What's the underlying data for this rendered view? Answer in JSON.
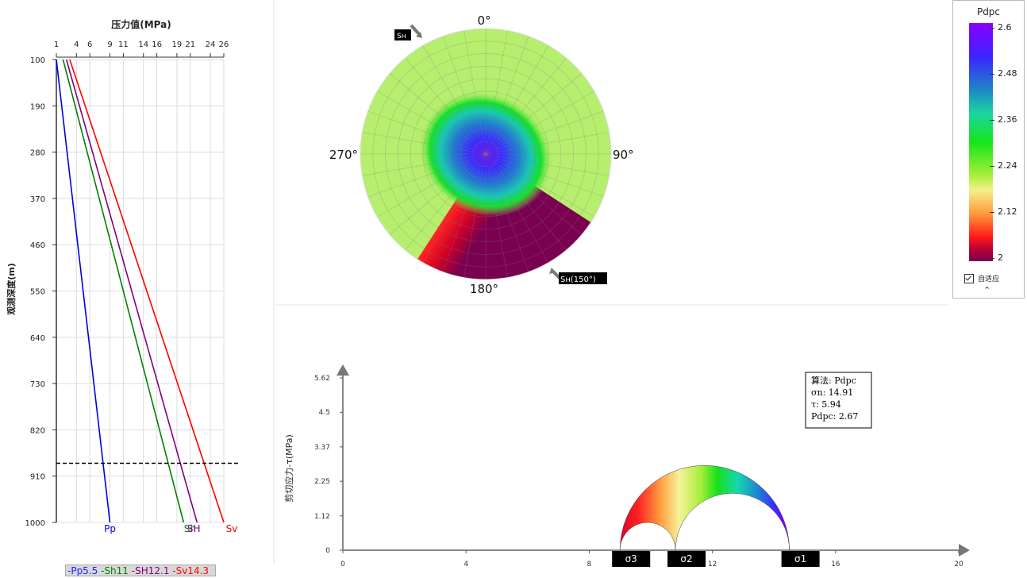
{
  "chart_data": [
    {
      "type": "line",
      "title": "压力值(MPa)",
      "ylabel": "观测深度(m)",
      "x_ticks": [
        1,
        4,
        6,
        9,
        11,
        14,
        16,
        19,
        21,
        24,
        26
      ],
      "y_ticks": [
        100,
        190,
        280,
        370,
        460,
        550,
        640,
        730,
        820,
        910,
        1000
      ],
      "xlim": [
        1,
        26
      ],
      "ylim": [
        100,
        1000
      ],
      "marker_depth": 885,
      "series": [
        {
          "name": "Pp",
          "color": "#0000e0",
          "points": [
            [
              1,
              100
            ],
            [
              9,
              1000
            ]
          ]
        },
        {
          "name": "Sh",
          "color": "#008000",
          "points": [
            [
              2,
              100
            ],
            [
              20,
              1000
            ]
          ]
        },
        {
          "name": "SH",
          "color": "#800080",
          "points": [
            [
              2.5,
              100
            ],
            [
              22,
              1000
            ]
          ]
        },
        {
          "name": "Sv",
          "color": "#ff0000",
          "points": [
            [
              3,
              100
            ],
            [
              26,
              1000
            ]
          ]
        }
      ],
      "legend": [
        {
          "label": "-Pp5.5",
          "color": "#2020ff"
        },
        {
          "label": "-Sh11",
          "color": "#008000"
        },
        {
          "label": "-SH12.1",
          "color": "#800080"
        },
        {
          "label": "-Sv14.3",
          "color": "#ff0000"
        }
      ]
    },
    {
      "type": "heatmap",
      "subtype": "polar-stereonet",
      "angle_labels": [
        "0°",
        "90°",
        "180°",
        "270°"
      ],
      "sH_label": "Sн",
      "SH_label": "Sн(150°)",
      "SH_azimuth": 150,
      "colorbar": {
        "title": "Pdpc",
        "min": 2,
        "max": 2.6,
        "ticks": [
          "2.6",
          "2.48",
          "2.36",
          "2.24",
          "2.12",
          "2"
        ],
        "auto_label": "自适应",
        "auto_checked": true,
        "collapse_icon": "chevron-up-icon"
      }
    },
    {
      "type": "line",
      "subtype": "mohr-circle",
      "ylabel": "剪切应力-τ(MPa)",
      "x_ticks": [
        0,
        4,
        8,
        12,
        16,
        20
      ],
      "y_ticks": [
        "0",
        "1.12",
        "2.25",
        "3.37",
        "4.5",
        "5.62"
      ],
      "xlim": [
        0,
        20
      ],
      "ylim": [
        0,
        5.62
      ],
      "sigma3": 9,
      "sigma2": 10.8,
      "sigma1": 14.5,
      "sigma_labels": [
        "σ3",
        "σ2",
        "σ1"
      ],
      "info": {
        "algorithm": "算法: Pdpc",
        "sigma_n": "σn: 14.91",
        "tau": "τ: 5.94",
        "pdpc": "Pdpc: 2.67"
      }
    }
  ]
}
